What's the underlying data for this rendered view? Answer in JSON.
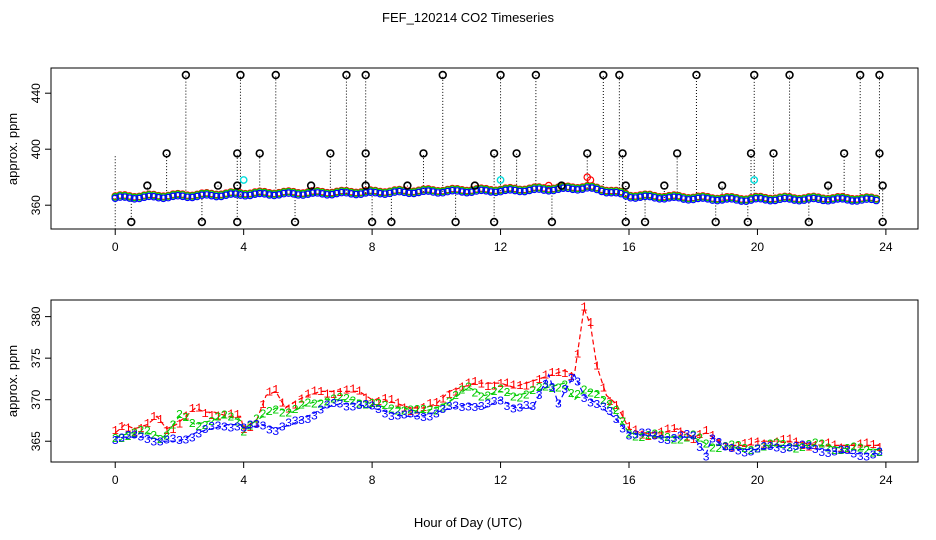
{
  "chart_data": {
    "title": "FEF_120214  CO2 Timeseries",
    "xlabel": "Hour of Day (UTC)",
    "panels": [
      {
        "type": "scatter",
        "ylabel": "approx. ppm",
        "xlim": [
          -2,
          25
        ],
        "ylim": [
          343,
          458
        ],
        "x_ticks": [
          "0",
          "4",
          "8",
          "12",
          "16",
          "20",
          "24"
        ],
        "y_ticks": [
          "360",
          "400",
          "440"
        ],
        "baseline": [
          [
            0,
            365
          ],
          [
            2,
            366
          ],
          [
            4,
            367.5
          ],
          [
            6,
            368
          ],
          [
            8,
            368.5
          ],
          [
            10,
            369.5
          ],
          [
            12,
            370
          ],
          [
            13.5,
            371
          ],
          [
            14.7,
            372
          ],
          [
            15.5,
            369
          ],
          [
            16,
            366
          ],
          [
            18,
            364.5
          ],
          [
            19.7,
            363.5
          ],
          [
            20,
            364
          ],
          [
            22,
            364
          ],
          [
            23.8,
            363.5
          ]
        ],
        "series": [
          {
            "name": "red",
            "color": "#ff0000",
            "offset": 1.5,
            "extra": [
              [
                14.7,
                380
              ],
              [
                14.8,
                378
              ],
              [
                13.5,
                374
              ]
            ]
          },
          {
            "name": "green",
            "color": "#00cc00",
            "offset": 1.0,
            "extra": []
          },
          {
            "name": "blue",
            "color": "#0000ff",
            "offset": 0,
            "extra": []
          }
        ],
        "cyan_points": [
          [
            4.0,
            378
          ],
          [
            12.0,
            378
          ],
          [
            19.9,
            378
          ]
        ],
        "black_high": [
          2.2,
          3.9,
          5.0,
          7.2,
          7.8,
          10.2,
          12.0,
          13.1,
          15.2,
          15.7,
          18.1,
          19.9,
          21.0,
          23.2,
          23.8
        ],
        "black_397": [
          1.6,
          3.8,
          4.5,
          6.7,
          7.8,
          9.6,
          11.8,
          12.5,
          14.7,
          15.8,
          17.5,
          19.8,
          20.5,
          22.7,
          23.8
        ],
        "black_374": [
          1.0,
          3.2,
          3.8,
          6.1,
          7.8,
          9.1,
          11.2,
          13.9,
          15.9,
          17.1,
          18.9,
          22.2,
          23.9
        ],
        "black_low": [
          0.5,
          2.7,
          3.8,
          5.6,
          8.0,
          8.6,
          10.6,
          11.8,
          13.6,
          15.9,
          16.5,
          18.7,
          19.7,
          21.6,
          23.9
        ],
        "black_high_value": 453,
        "black_397_value": 397,
        "black_374_value": 374,
        "black_low_value": 348
      },
      {
        "type": "line",
        "ylabel": "approx. ppm",
        "xlim": [
          -2,
          25
        ],
        "ylim": [
          362.5,
          382
        ],
        "x_ticks": [
          "0",
          "4",
          "8",
          "12",
          "16",
          "20",
          "24"
        ],
        "y_ticks": [
          "365",
          "370",
          "375",
          "380"
        ],
        "series": [
          {
            "name": "1",
            "color": "#ff0000",
            "points": [
              [
                0,
                366
              ],
              [
                0.3,
                367
              ],
              [
                0.6,
                366.5
              ],
              [
                1,
                367
              ],
              [
                1.3,
                368
              ],
              [
                1.6,
                366.5
              ],
              [
                1.9,
                367
              ],
              [
                2.2,
                368
              ],
              [
                2.5,
                369
              ],
              [
                2.8,
                368.5
              ],
              [
                3.1,
                368.5
              ],
              [
                3.5,
                368
              ],
              [
                3.9,
                368
              ],
              [
                4,
                366.5
              ],
              [
                4.4,
                367.5
              ],
              [
                4.7,
                370.5
              ],
              [
                5,
                371
              ],
              [
                5.3,
                369
              ],
              [
                5.7,
                370
              ],
              [
                6,
                370.5
              ],
              [
                6.4,
                371
              ],
              [
                6.8,
                371
              ],
              [
                7.2,
                371
              ],
              [
                7.6,
                371
              ],
              [
                8,
                370
              ],
              [
                8.4,
                370
              ],
              [
                8.8,
                369.5
              ],
              [
                9.2,
                369
              ],
              [
                9.6,
                369
              ],
              [
                10,
                369.5
              ],
              [
                10.4,
                371
              ],
              [
                10.8,
                371.5
              ],
              [
                11.2,
                372
              ],
              [
                11.6,
                372
              ],
              [
                12,
                372
              ],
              [
                12.4,
                371.5
              ],
              [
                12.8,
                372
              ],
              [
                13.2,
                372.5
              ],
              [
                13.6,
                373
              ],
              [
                14,
                373.5
              ],
              [
                14.3,
                373
              ],
              [
                14.6,
                381
              ],
              [
                14.8,
                379
              ],
              [
                15,
                374
              ],
              [
                15.3,
                370.5
              ],
              [
                15.6,
                369.5
              ],
              [
                16,
                366.5
              ],
              [
                16.4,
                366
              ],
              [
                17,
                366
              ],
              [
                17.5,
                366.5
              ],
              [
                18,
                365.5
              ],
              [
                18.4,
                366
              ],
              [
                18.8,
                365
              ],
              [
                19.2,
                364.5
              ],
              [
                19.7,
                364.5
              ],
              [
                20,
                365
              ],
              [
                21,
                365
              ],
              [
                22,
                364.5
              ],
              [
                23,
                364.5
              ],
              [
                23.8,
                364.5
              ]
            ]
          },
          {
            "name": "2",
            "color": "#00cc00",
            "points": [
              [
                0,
                365.5
              ],
              [
                0.5,
                366
              ],
              [
                1,
                366
              ],
              [
                1.5,
                365.5
              ],
              [
                2,
                368
              ],
              [
                2.5,
                367
              ],
              [
                3,
                367.5
              ],
              [
                3.5,
                368
              ],
              [
                3.9,
                367.5
              ],
              [
                4,
                366.5
              ],
              [
                4.6,
                368
              ],
              [
                5,
                369
              ],
              [
                5.5,
                368.5
              ],
              [
                6,
                369.5
              ],
              [
                6.5,
                370
              ],
              [
                7,
                370
              ],
              [
                7.5,
                370
              ],
              [
                8,
                369.5
              ],
              [
                8.5,
                369
              ],
              [
                9,
                369
              ],
              [
                9.5,
                368.5
              ],
              [
                10,
                369
              ],
              [
                10.5,
                370
              ],
              [
                11,
                371.5
              ],
              [
                11.5,
                370.5
              ],
              [
                12,
                371
              ],
              [
                12.5,
                370.5
              ],
              [
                13,
                371
              ],
              [
                13.5,
                371.5
              ],
              [
                14,
                372
              ],
              [
                14.3,
                370
              ],
              [
                14.6,
                371
              ],
              [
                15,
                371
              ],
              [
                15.5,
                369
              ],
              [
                16,
                366
              ],
              [
                17,
                365.5
              ],
              [
                18,
                365.5
              ],
              [
                18.5,
                364.5
              ],
              [
                19,
                364.5
              ],
              [
                19.7,
                364
              ],
              [
                20,
                364.5
              ],
              [
                21,
                364.5
              ],
              [
                22,
                364.5
              ],
              [
                23,
                364
              ],
              [
                23.8,
                364
              ]
            ]
          },
          {
            "name": "3",
            "color": "#0000ff",
            "points": [
              [
                0,
                365.5
              ],
              [
                0.5,
                365.5
              ],
              [
                1,
                365.5
              ],
              [
                1.5,
                365
              ],
              [
                2,
                365
              ],
              [
                2.5,
                366
              ],
              [
                3,
                366.5
              ],
              [
                3.5,
                367
              ],
              [
                3.9,
                367
              ],
              [
                4,
                366.5
              ],
              [
                4.6,
                367
              ],
              [
                5,
                366.5
              ],
              [
                5.5,
                367
              ],
              [
                6,
                368
              ],
              [
                6.5,
                369
              ],
              [
                7,
                369.5
              ],
              [
                7.5,
                369.5
              ],
              [
                8,
                369
              ],
              [
                8.5,
                368.5
              ],
              [
                9,
                368
              ],
              [
                9.5,
                368
              ],
              [
                10,
                368.5
              ],
              [
                10.5,
                369
              ],
              [
                11,
                369.5
              ],
              [
                11.5,
                369
              ],
              [
                12,
                370
              ],
              [
                12.5,
                369
              ],
              [
                13,
                369
              ],
              [
                13.5,
                373
              ],
              [
                13.8,
                369.5
              ],
              [
                14,
                371
              ],
              [
                14.3,
                373
              ],
              [
                14.6,
                370.5
              ],
              [
                15,
                369.5
              ],
              [
                15.5,
                368
              ],
              [
                16,
                366
              ],
              [
                17,
                365.5
              ],
              [
                18,
                365.5
              ],
              [
                18.4,
                363.5
              ],
              [
                18.6,
                365.5
              ],
              [
                19,
                364
              ],
              [
                19.7,
                364
              ],
              [
                20,
                364
              ],
              [
                21,
                364.5
              ],
              [
                22,
                364
              ],
              [
                23,
                363.5
              ],
              [
                23.8,
                363.5
              ]
            ]
          }
        ]
      }
    ]
  }
}
